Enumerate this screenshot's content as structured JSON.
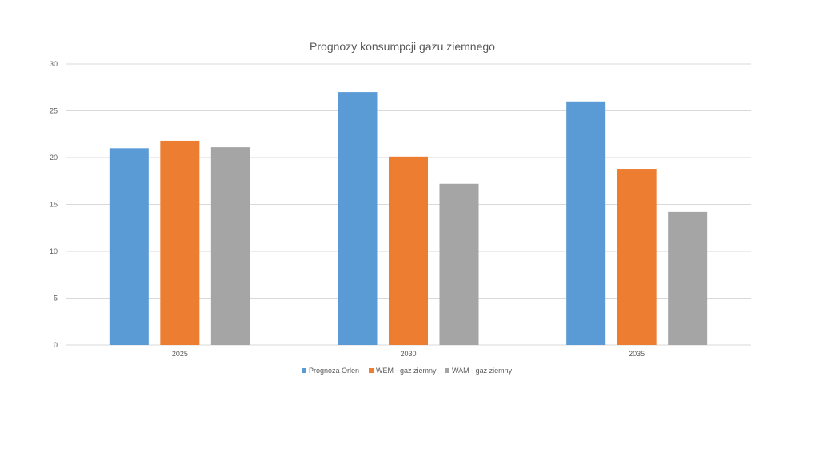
{
  "chart_data": {
    "type": "bar",
    "title": "Prognozy konsumpcji gazu ziemnego",
    "xlabel": "",
    "ylabel": "",
    "categories": [
      "2025",
      "2030",
      "2035"
    ],
    "series": [
      {
        "name": "Prognoza Orlen",
        "color": "#5b9bd5",
        "values": [
          21.0,
          27.0,
          26.0
        ]
      },
      {
        "name": "WEM - gaz ziemny",
        "color": "#ed7d31",
        "values": [
          21.8,
          20.1,
          18.8
        ]
      },
      {
        "name": "WAM - gaz ziemny",
        "color": "#a5a5a5",
        "values": [
          21.1,
          17.2,
          14.2
        ]
      }
    ],
    "ylim": [
      0,
      30
    ],
    "yticks": [
      "0",
      "5",
      "10",
      "15",
      "20",
      "25",
      "30"
    ],
    "grid": true,
    "legend_position": "bottom"
  }
}
